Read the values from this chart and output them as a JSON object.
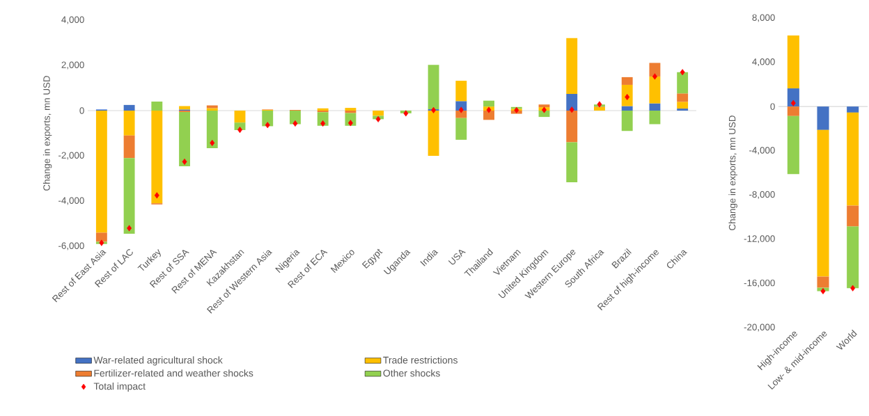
{
  "chart_data": [
    {
      "type": "bar",
      "stacked": true,
      "ylabel": "Change in exports, mn USD",
      "categories": [
        "Rest of East Asia",
        "Rest of LAC",
        "Turkey",
        "Rest of SSA",
        "Rest of MENA",
        "Kazakhstan",
        "Rest of Western Asia",
        "Nigeria",
        "Rest of ECA",
        "Mexico",
        "Egypt",
        "Uganda",
        "India",
        "USA",
        "Thailand",
        "Vietnam",
        "United Kingdom",
        "Western Europe",
        "South Africa",
        "Brazil",
        "Rest of high-income",
        "China"
      ],
      "series": [
        {
          "name": "War-related agricultural shock",
          "color": "#4472c4",
          "values": [
            50,
            250,
            0,
            50,
            0,
            0,
            0,
            0,
            0,
            0,
            0,
            null,
            60,
            420,
            0,
            0,
            null,
            740,
            0,
            200,
            320,
            90
          ]
        },
        {
          "name": "Trade restrictions",
          "color": "#ffc000",
          "values": [
            -5400,
            -1100,
            -4100,
            150,
            110,
            -530,
            30,
            0,
            100,
            120,
            -230,
            null,
            -2000,
            900,
            180,
            80,
            150,
            2470,
            160,
            940,
            1190,
            300
          ]
        },
        {
          "name": "Fertilizer-related and weather shocks",
          "color": "#ed7d31",
          "values": [
            -400,
            -1000,
            -50,
            -60,
            120,
            0,
            20,
            30,
            -70,
            -110,
            0,
            null,
            0,
            -330,
            -410,
            -140,
            120,
            -1400,
            20,
            340,
            600,
            370
          ]
        },
        {
          "name": "Other shocks",
          "color": "#92d050",
          "values": [
            -100,
            -3350,
            400,
            -2400,
            -1660,
            -330,
            -690,
            -600,
            -600,
            -560,
            -150,
            -120,
            1960,
            -960,
            260,
            80,
            -280,
            -1770,
            90,
            -900,
            -600,
            940
          ]
        },
        {
          "name": "Total impact",
          "type": "scatter",
          "marker": "diamond",
          "color": "#ff0000",
          "values": [
            -5850,
            -5200,
            -3750,
            -2260,
            -1430,
            -850,
            -640,
            -570,
            -570,
            -550,
            -380,
            -120,
            20,
            30,
            30,
            20,
            30,
            40,
            280,
            600,
            1510,
            1700
          ]
        }
      ],
      "ylim": [
        -6000,
        4000
      ],
      "yticks": [
        {
          "value": -6000,
          "label": "-6,000"
        },
        {
          "value": -4000,
          "label": "-4,000"
        },
        {
          "value": -2000,
          "label": "-2,000"
        },
        0,
        {
          "value": 2000,
          "label": "2,000"
        },
        {
          "value": 4000,
          "label": "4,000"
        }
      ],
      "legend": "bottom"
    },
    {
      "type": "bar",
      "stacked": true,
      "ylabel": "Change in exports, mn USD",
      "categories": [
        "High-income",
        "Low- & mid-income",
        "World"
      ],
      "series": [
        {
          "color": "#4472c4",
          "values": [
            1640,
            -2120,
            -550
          ]
        },
        {
          "color": "#ffc000",
          "values": [
            4780,
            -13260,
            -8410
          ]
        },
        {
          "color": "#ed7d31",
          "values": [
            -860,
            -1010,
            -1890
          ]
        },
        {
          "color": "#92d050",
          "values": [
            -5250,
            -310,
            -5580
          ]
        },
        {
          "type": "scatter",
          "marker": "diamond",
          "color": "#ff0000",
          "values": [
            310,
            -16700,
            -16430
          ]
        }
      ],
      "ylim": [
        -20000,
        8000
      ],
      "yticks": [
        {
          "value": -20000,
          "label": "-20,000"
        },
        {
          "value": -16000,
          "label": "-16,000"
        },
        {
          "value": -12000,
          "label": "-12,000"
        },
        {
          "value": -8000,
          "label": "-8,000"
        },
        {
          "value": -4000,
          "label": "-4,000"
        },
        0,
        {
          "value": 4000,
          "label": "4,000"
        },
        {
          "value": 8000,
          "label": "8,000"
        }
      ]
    }
  ]
}
